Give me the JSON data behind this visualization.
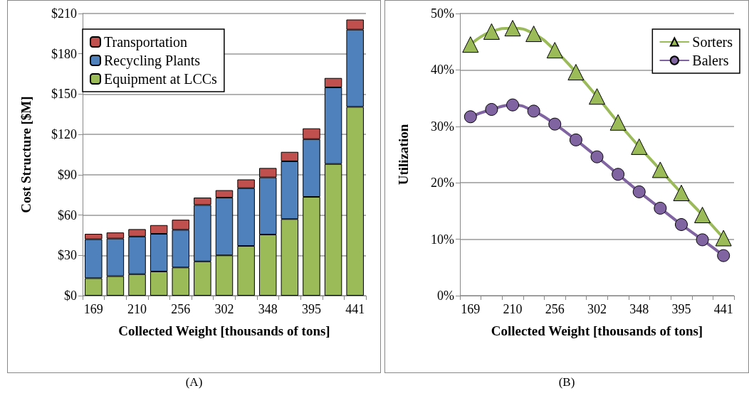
{
  "chart_data": [
    {
      "type": "bar",
      "stacked": true,
      "ylabel": "Cost Structure [$M]",
      "xlabel": "Collected Weight [thousands of tons]",
      "categories": [
        "169",
        null,
        "210",
        null,
        "256",
        null,
        "302",
        null,
        "348",
        null,
        "395",
        null,
        "441"
      ],
      "series": [
        {
          "name": "Equipment at LCCs",
          "color": "#9bbb59",
          "values": [
            13,
            14.5,
            16,
            18,
            21,
            25.5,
            30,
            37,
            45.5,
            57,
            73.5,
            98,
            140.5
          ]
        },
        {
          "name": "Recycling Plants",
          "color": "#4f81bd",
          "values": [
            29,
            28,
            28,
            28,
            28,
            42,
            43,
            43,
            42.5,
            43,
            43,
            57,
            57.5
          ]
        },
        {
          "name": "Transportation",
          "color": "#c0504d",
          "values": [
            4,
            4.5,
            5.5,
            6.5,
            7.5,
            5.5,
            5.5,
            6.5,
            7,
            7,
            8,
            7,
            7.5
          ]
        }
      ],
      "ylim": [
        0,
        210
      ],
      "yticks": [
        {
          "value": 0,
          "label": "$0"
        },
        {
          "value": 30,
          "label": "$30"
        },
        {
          "value": 60,
          "label": "$60"
        },
        {
          "value": 90,
          "label": "$90"
        },
        {
          "value": 120,
          "label": "$120"
        },
        {
          "value": 150,
          "label": "$150"
        },
        {
          "value": 180,
          "label": "$180"
        },
        {
          "value": 210,
          "label": "$210"
        }
      ],
      "grid": "y",
      "legend": "top left",
      "annotations": [
        "(A)"
      ]
    },
    {
      "type": "line",
      "ylabel": "Utilization",
      "xlabel": "Collected Weight [thousands of tons]",
      "categories": [
        "169",
        null,
        "210",
        null,
        "256",
        null,
        "302",
        null,
        "348",
        null,
        "395",
        null,
        "441"
      ],
      "series": [
        {
          "name": "Sorters",
          "color": "#9bbb59",
          "marker": "triangle",
          "values": [
            44.5,
            46.8,
            47.4,
            46.4,
            43.5,
            39.6,
            35.3,
            30.7,
            26.4,
            22.3,
            18.2,
            14.3,
            10.2
          ]
        },
        {
          "name": "Balers",
          "color": "#8064a2",
          "marker": "circle",
          "values": [
            31.7,
            33.0,
            33.8,
            32.7,
            30.4,
            27.6,
            24.6,
            21.5,
            18.4,
            15.5,
            12.6,
            9.9,
            7.1
          ]
        }
      ],
      "ylim": [
        0,
        50
      ],
      "yticks": [
        {
          "value": 0,
          "label": "0%"
        },
        {
          "value": 10,
          "label": "10%"
        },
        {
          "value": 20,
          "label": "20%"
        },
        {
          "value": 30,
          "label": "30%"
        },
        {
          "value": 40,
          "label": "40%"
        },
        {
          "value": 50,
          "label": "50%"
        }
      ],
      "grid": "y",
      "legend": "top right",
      "annotations": [
        "(B)"
      ]
    }
  ]
}
